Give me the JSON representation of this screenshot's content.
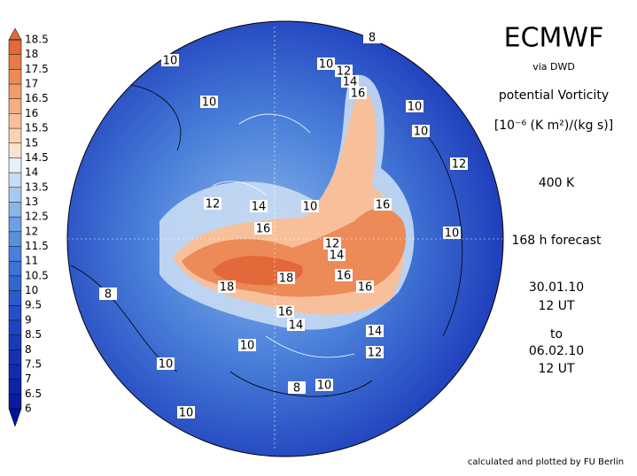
{
  "header": {
    "title": "ECMWF",
    "source": "via DWD",
    "variable": "potential Vorticity",
    "unit": "[10⁻⁶ (K m²)/(kg s)]",
    "level": "400 K",
    "forecast": "168 h forecast",
    "start_date": "30.01.10",
    "start_time": "12 UT",
    "to": "to",
    "end_date": "06.02.10",
    "end_time": "12 UT"
  },
  "footer": {
    "credit": "calculated and plotted by FU Berlin"
  },
  "legend": {
    "ticks": [
      18.5,
      18,
      17.5,
      17,
      16.5,
      16,
      15.5,
      15,
      14.5,
      14,
      13.5,
      13,
      12.5,
      12,
      11.5,
      11,
      10.5,
      10,
      9.5,
      9,
      8.5,
      8,
      7.5,
      7,
      6.5,
      6
    ],
    "colors": [
      "#e2693a",
      "#e87a48",
      "#ec8a58",
      "#f09c6c",
      "#f4ae82",
      "#f7c09a",
      "#f9d2b4",
      "#fae4d0",
      "#e6eef8",
      "#c8dcf4",
      "#a9c8ee",
      "#8cb4e8",
      "#6e9fe2",
      "#5a8fde",
      "#4a80da",
      "#3d72d6",
      "#3466d2",
      "#2c5acc",
      "#264ec6",
      "#2044c0",
      "#1a3aba",
      "#1632b4",
      "#122aae",
      "#0e22a8",
      "#0a1aa2"
    ]
  },
  "map": {
    "contour_labels": [
      "8",
      "10",
      "10",
      "12",
      "14",
      "16",
      "10",
      "10",
      "10",
      "12",
      "12",
      "14",
      "10",
      "16",
      "16",
      "10",
      "12",
      "14",
      "8",
      "18",
      "18",
      "16",
      "16",
      "16",
      "14",
      "14",
      "10",
      "12",
      "10",
      "8",
      "10",
      "10"
    ]
  }
}
